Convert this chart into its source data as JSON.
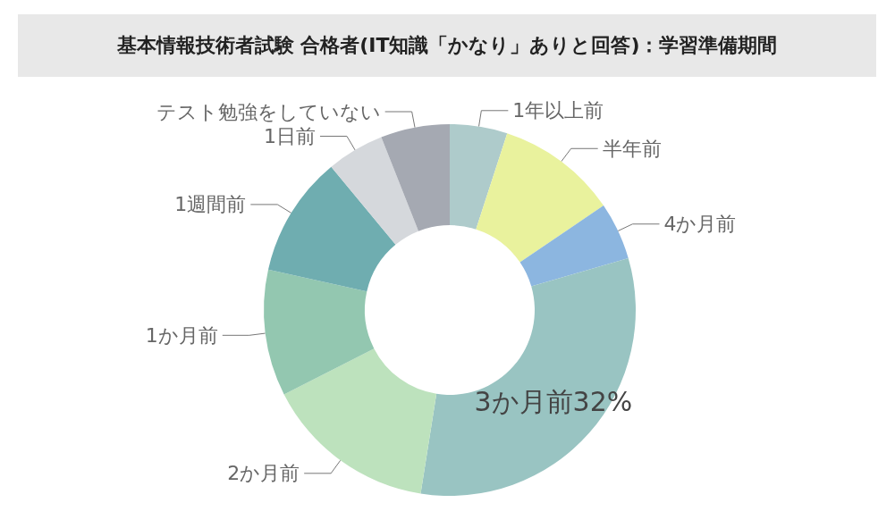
{
  "chart_data": {
    "type": "donut",
    "title": "基本情報技術者試験 合格者(IT知識「かなり」ありと回答)：学習準備期間",
    "categories": [
      "1年以上前",
      "半年前",
      "4か月前",
      "3か月前",
      "2か月前",
      "1か月前",
      "1週間前",
      "1日前",
      "テスト勉強をしていない"
    ],
    "values": [
      5,
      10.5,
      5,
      32,
      15,
      11,
      10.5,
      5,
      6
    ],
    "value_labels": [
      null,
      null,
      null,
      "32%",
      null,
      null,
      null,
      null,
      null
    ],
    "colors": [
      "#aecbcb",
      "#e9f29d",
      "#8cb6e0",
      "#99c4c2",
      "#bde2bd",
      "#93c7b0",
      "#6fadb0",
      "#d5d8dc",
      "#a5a9b2"
    ],
    "legend": false
  }
}
